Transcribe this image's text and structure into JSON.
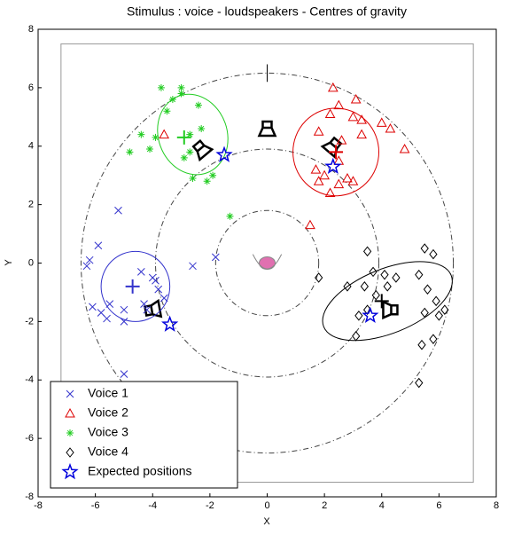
{
  "chart_data": {
    "type": "scatter",
    "title": "Stimulus : voice - loudspeakers - Centres of gravity",
    "x_label": "X",
    "y_label": "Y",
    "xlim": [
      -8,
      8
    ],
    "ylim": [
      -8,
      8
    ],
    "xticks": [
      -8,
      -6,
      -4,
      -2,
      0,
      2,
      4,
      6,
      8
    ],
    "yticks": [
      -8,
      -6,
      -4,
      -2,
      0,
      2,
      4,
      6,
      8
    ],
    "legend": "lower left",
    "series": [
      {
        "name": "Voice 1",
        "color": "#3333cc",
        "marker": "x",
        "x": [
          -5.2,
          -6.2,
          -6.3,
          -5.9,
          -6.1,
          -5.6,
          -5.5,
          -5.0,
          -4.4,
          -4.0,
          -3.8,
          -3.6,
          -4.2,
          -5.0,
          -5.8,
          -2.6,
          -1.8,
          -5.0,
          -4.3,
          -3.9
        ],
        "y": [
          1.8,
          0.1,
          -0.1,
          0.6,
          -1.5,
          -1.9,
          -1.4,
          -1.6,
          -0.3,
          -0.5,
          -0.9,
          -1.2,
          -1.6,
          -2.0,
          -1.7,
          -0.1,
          0.2,
          -3.8,
          -1.4,
          -0.6
        ],
        "centre": [
          -4.7,
          -0.8
        ],
        "ellipse": {
          "cx": -4.6,
          "cy": -0.8,
          "rx": 1.2,
          "ry": 1.2,
          "angle": 0
        }
      },
      {
        "name": "Voice 2",
        "color": "#dd0000",
        "marker": "triangle",
        "x": [
          2.3,
          2.5,
          2.2,
          3.1,
          3.0,
          3.3,
          4.0,
          4.3,
          4.8,
          3.3,
          2.6,
          1.8,
          1.7,
          2.0,
          1.8,
          2.5,
          2.8,
          3.0,
          2.2,
          2.5,
          1.5,
          -3.6
        ],
        "y": [
          6.0,
          5.4,
          5.1,
          5.6,
          5.0,
          4.9,
          4.8,
          4.6,
          3.9,
          4.4,
          4.2,
          4.5,
          3.2,
          3.0,
          2.8,
          3.5,
          2.9,
          2.8,
          2.4,
          2.7,
          1.3,
          4.4
        ],
        "centre": [
          2.4,
          3.8
        ],
        "ellipse": {
          "cx": 2.4,
          "cy": 3.8,
          "rx": 1.5,
          "ry": 1.5,
          "angle": 0
        }
      },
      {
        "name": "Voice 3",
        "color": "#22cc22",
        "marker": "asterisk",
        "x": [
          -3.7,
          -3.0,
          -3.0,
          -3.3,
          -2.4,
          -3.5,
          -4.4,
          -2.3,
          -4.8,
          -4.1,
          -3.9,
          -2.7,
          -2.9,
          -2.6,
          -2.1,
          -1.9,
          -1.3,
          -2.7
        ],
        "y": [
          6.0,
          6.0,
          5.8,
          5.6,
          5.4,
          5.2,
          4.4,
          4.6,
          3.8,
          3.9,
          4.3,
          4.4,
          3.6,
          2.9,
          2.8,
          3.0,
          1.6,
          3.8
        ],
        "centre": [
          -2.9,
          4.3
        ],
        "ellipse": {
          "cx": -2.6,
          "cy": 4.4,
          "rx": 1.2,
          "ry": 1.4,
          "angle": -20
        }
      },
      {
        "name": "Voice 4",
        "color": "#000000",
        "marker": "diamond",
        "x": [
          3.5,
          4.1,
          3.7,
          4.5,
          4.2,
          3.8,
          3.4,
          1.8,
          2.8,
          3.2,
          3.1,
          3.5,
          5.5,
          5.8,
          5.3,
          5.6,
          5.9,
          6.2,
          5.5,
          5.4,
          5.8,
          5.3,
          6.0
        ],
        "y": [
          0.4,
          -0.4,
          -0.3,
          -0.5,
          -0.8,
          -1.1,
          -0.8,
          -0.5,
          -0.8,
          -1.8,
          -2.5,
          -1.6,
          0.5,
          0.3,
          -0.4,
          -0.9,
          -1.3,
          -1.6,
          -1.7,
          -2.8,
          -2.6,
          -4.1,
          -1.8
        ],
        "centre": [
          4.0,
          -1.3
        ],
        "ellipse": {
          "cx": 4.2,
          "cy": -1.3,
          "rx": 2.4,
          "ry": 1.1,
          "angle": -22
        }
      },
      {
        "name": "Expected positions",
        "color": "#0000dd",
        "marker": "star",
        "x": [
          -3.4,
          -1.5,
          2.3,
          3.6
        ],
        "y": [
          -2.1,
          3.7,
          3.3,
          -1.8
        ]
      }
    ]
  }
}
